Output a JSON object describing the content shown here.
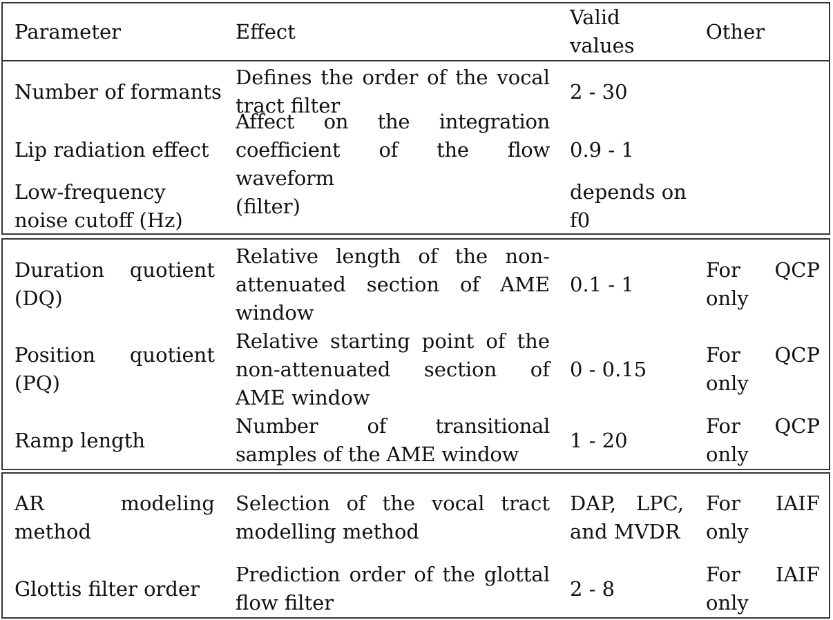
{
  "header": {
    "parameter": "Parameter",
    "effect": "Effect",
    "valid": "Valid values",
    "other": "Other"
  },
  "groups": [
    {
      "rows": [
        {
          "parameter": "Number of formants",
          "effect": "Defines the order of the vocal tract filter",
          "valid": "2 - 30",
          "other": ""
        },
        {
          "parameter": "Lip radiation effect",
          "effect": "Affect on the integration coefficient of the flow waveform",
          "valid": "0.9 - 1",
          "other": ""
        },
        {
          "parameter": "Low-frequency noise cutoff (Hz)",
          "effect": "(filter)",
          "valid": "depends on f0",
          "other": ""
        }
      ]
    },
    {
      "rows": [
        {
          "parameter": "Duration quotient (DQ)",
          "effect": "Relative length of the non-attenuated section of AME window",
          "valid": "0.1 - 1",
          "other": "For QCP only"
        },
        {
          "parameter": "Position quotient (PQ)",
          "effect": "Relative starting point of the non-attenuated section of AME window",
          "valid": "0 - 0.15",
          "other": "For QCP only"
        },
        {
          "parameter": "Ramp length",
          "effect": "Number of transitional samples of the AME window",
          "valid": "1 - 20",
          "other": "For QCP only"
        }
      ]
    },
    {
      "rows": [
        {
          "parameter": "AR modeling method",
          "effect": "Selection of the vocal tract modelling method",
          "valid": "DAP, LPC, and MVDR",
          "other": "For IAIF only"
        },
        {
          "parameter": "Glottis filter order",
          "effect": "Prediction order of the glottal flow filter",
          "valid": "2 - 8",
          "other": "For IAIF only"
        }
      ]
    }
  ]
}
